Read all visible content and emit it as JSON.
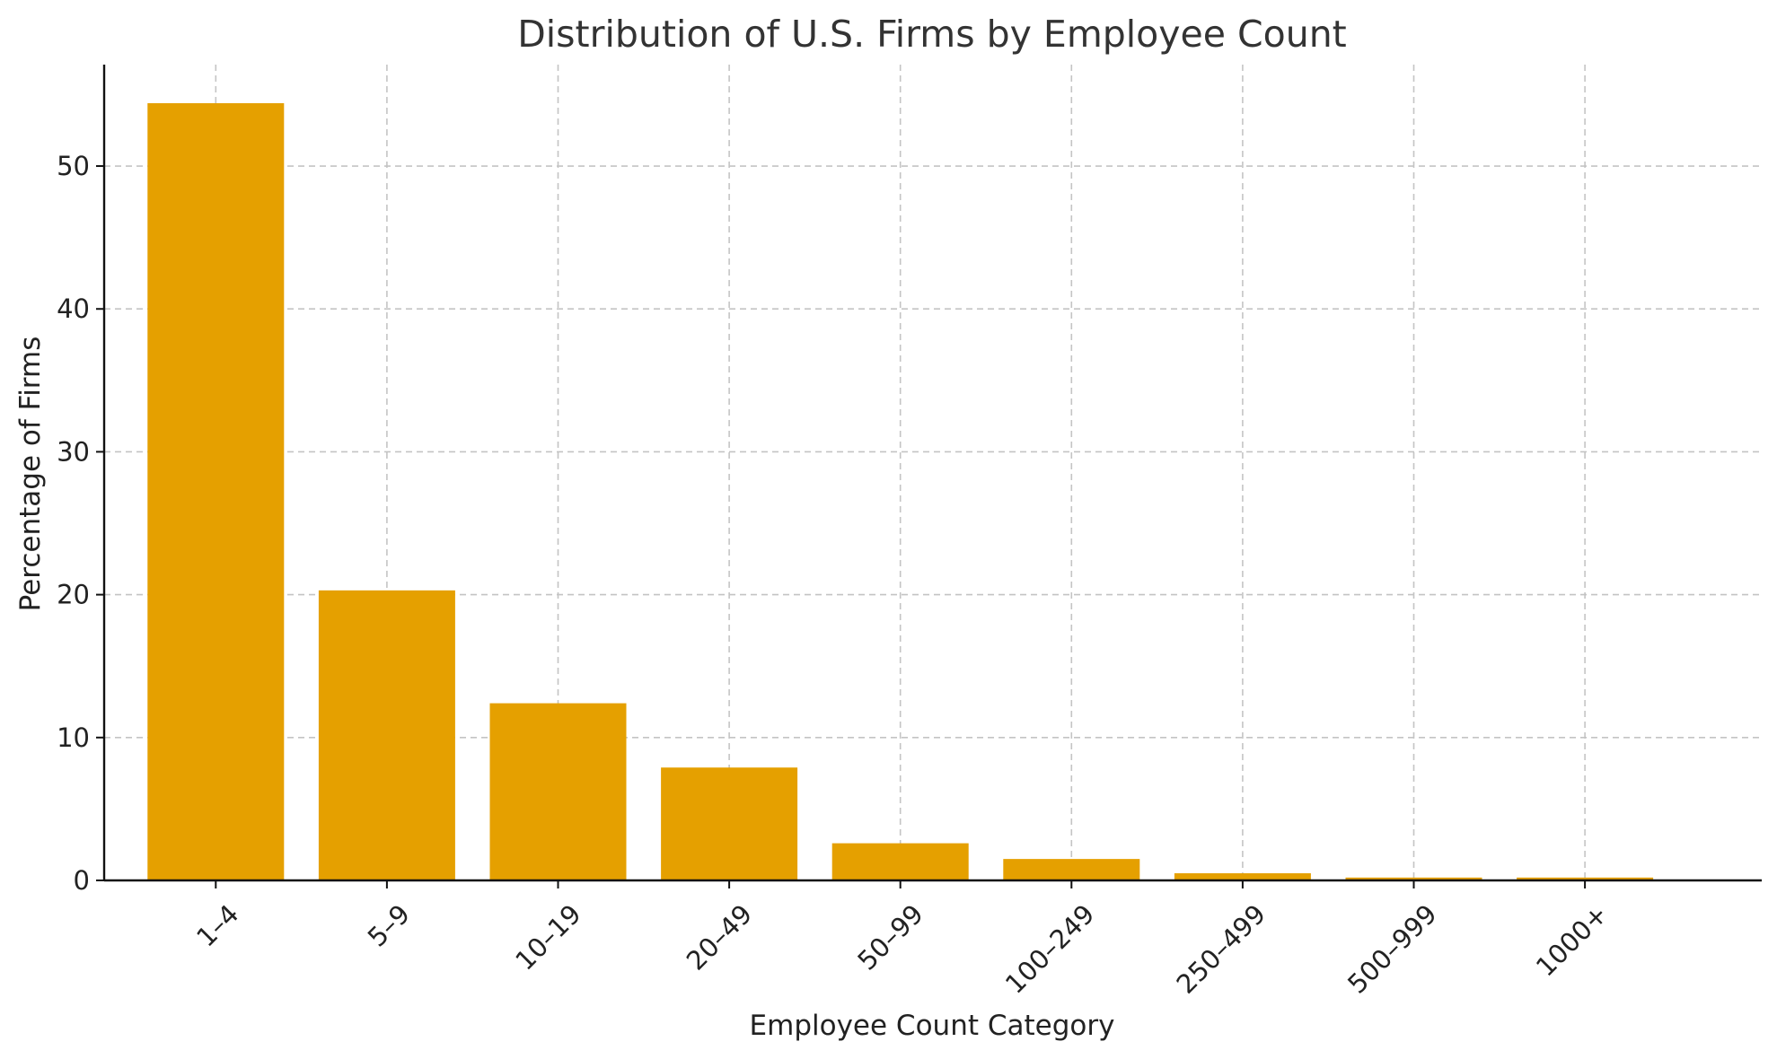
{
  "chart_data": {
    "type": "bar",
    "title": "Distribution of U.S. Firms by Employee Count",
    "xlabel": "Employee Count Category",
    "ylabel": "Percentage of Firms",
    "categories": [
      "1–4",
      "5–9",
      "10–19",
      "20–49",
      "50–99",
      "100–249",
      "250–499",
      "500–999",
      "1000+"
    ],
    "values": [
      54.4,
      20.3,
      12.4,
      7.9,
      2.6,
      1.5,
      0.5,
      0.2,
      0.2
    ],
    "ylim": [
      0,
      57.1
    ],
    "yticks": [
      0,
      10,
      20,
      30,
      40,
      50
    ],
    "bar_color": "#E5A000",
    "grid": true,
    "legend": "none"
  }
}
